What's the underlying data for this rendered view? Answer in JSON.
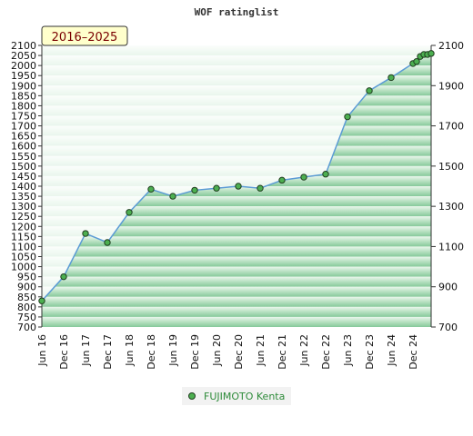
{
  "chart_data": {
    "type": "area",
    "title": "WOF ratinglist",
    "badge": "2016–2025",
    "left_ticks": [
      "2100",
      "2050",
      "2000",
      "1950",
      "1900",
      "1850",
      "1800",
      "1750",
      "1700",
      "1650",
      "1600",
      "1550",
      "1500",
      "1450",
      "1400",
      "1350",
      "1300",
      "1250",
      "1200",
      "1150",
      "1100",
      "1050",
      "1000",
      "950",
      "900",
      "850",
      "800",
      "750",
      "700"
    ],
    "right_ticks": [
      "2100",
      "1900",
      "1700",
      "1500",
      "1300",
      "1100",
      "900",
      "700"
    ],
    "x_ticks": [
      "Jun 16",
      "Dec 16",
      "Jun 17",
      "Dec 17",
      "Jun 18",
      "Dec 18",
      "Jun 19",
      "Dec 19",
      "Jun 20",
      "Dec 20",
      "Jun 21",
      "Dec 21",
      "Jun 22",
      "Dec 22",
      "Jun 23",
      "Dec 23",
      "Jun 24",
      "Dec 24"
    ],
    "ylim": [
      700,
      2100
    ],
    "grid": true,
    "legend_position": "bottom",
    "colors": {
      "line": "#5b9bd5",
      "marker": "#4caf50",
      "band_dark": "#8fcc9f",
      "band_light": "#eaf6ec"
    },
    "series": [
      {
        "name": "FUJIMOTO Kenta",
        "x": [
          "2016-06",
          "2016-12",
          "2017-06",
          "2017-12",
          "2018-06",
          "2018-12",
          "2019-06",
          "2019-12",
          "2020-06",
          "2020-12",
          "2021-06",
          "2021-12",
          "2022-06",
          "2022-12",
          "2023-06",
          "2023-12",
          "2024-06",
          "2024-12",
          "2025-01",
          "2025-02",
          "2025-03",
          "2025-04",
          "2025-05"
        ],
        "values": [
          830,
          950,
          1165,
          1120,
          1270,
          1385,
          1350,
          1380,
          1390,
          1400,
          1390,
          1430,
          1445,
          1460,
          1745,
          1875,
          1940,
          2010,
          2020,
          2045,
          2055,
          2055,
          2060
        ]
      }
    ]
  }
}
